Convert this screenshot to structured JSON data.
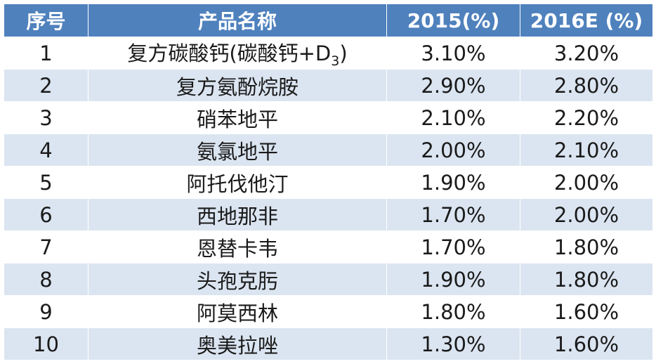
{
  "table": {
    "headers": [
      "序号",
      "产品名称",
      "2015(%)",
      "2016E (%)"
    ],
    "rows": [
      {
        "no": "1",
        "name_main": "复方碳酸钙(碳酸钙+D",
        "name_sub": "3",
        "name_tail": ")",
        "v2015": "3.10%",
        "v2016": "3.20%"
      },
      {
        "no": "2",
        "name_main": "复方氨酚烷胺",
        "name_sub": "",
        "name_tail": "",
        "v2015": "2.90%",
        "v2016": "2.80%"
      },
      {
        "no": "3",
        "name_main": "硝苯地平",
        "name_sub": "",
        "name_tail": "",
        "v2015": "2.10%",
        "v2016": "2.20%"
      },
      {
        "no": "4",
        "name_main": "氨氯地平",
        "name_sub": "",
        "name_tail": "",
        "v2015": "2.00%",
        "v2016": "2.10%"
      },
      {
        "no": "5",
        "name_main": "阿托伐他汀",
        "name_sub": "",
        "name_tail": "",
        "v2015": "1.90%",
        "v2016": "2.00%"
      },
      {
        "no": "6",
        "name_main": "西地那非",
        "name_sub": "",
        "name_tail": "",
        "v2015": "1.70%",
        "v2016": "2.00%"
      },
      {
        "no": "7",
        "name_main": "恩替卡韦",
        "name_sub": "",
        "name_tail": "",
        "v2015": "1.70%",
        "v2016": "1.80%"
      },
      {
        "no": "8",
        "name_main": "头孢克肟",
        "name_sub": "",
        "name_tail": "",
        "v2015": "1.90%",
        "v2016": "1.80%"
      },
      {
        "no": "9",
        "name_main": "阿莫西林",
        "name_sub": "",
        "name_tail": "",
        "v2015": "1.80%",
        "v2016": "1.60%"
      },
      {
        "no": "10",
        "name_main": "奥美拉唑",
        "name_sub": "",
        "name_tail": "",
        "v2015": "1.30%",
        "v2016": "1.60%"
      }
    ]
  },
  "colors": {
    "header_bg": "#4f81bd",
    "header_text": "#ffffff",
    "row_alt_bg": "#dbe5f1",
    "row_bg": "#ffffff"
  }
}
